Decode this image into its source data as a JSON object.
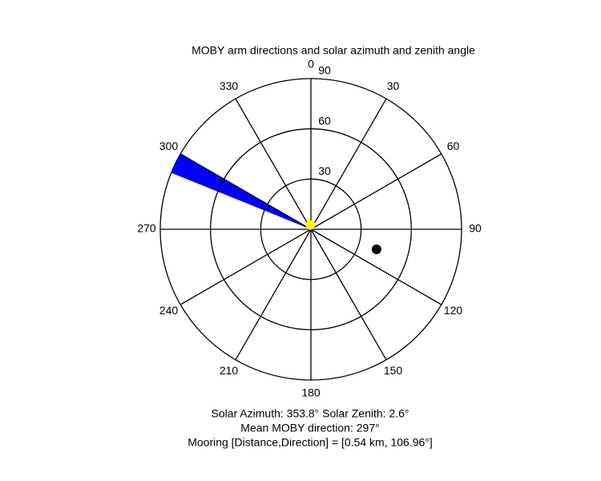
{
  "chart_data": {
    "type": "polar",
    "title": "MOBY arm directions and solar azimuth and zenith angle",
    "angle_ticks": [
      0,
      30,
      60,
      90,
      120,
      150,
      180,
      210,
      240,
      270,
      300,
      330
    ],
    "rlim": [
      0,
      90
    ],
    "rticks": [
      30,
      60,
      90
    ],
    "series": [
      {
        "kind": "wedge",
        "color": "#0000ff",
        "theta": [
          292,
          300
        ],
        "r": 90
      },
      {
        "kind": "point",
        "color": "#000000",
        "theta": 106.96,
        "r": 41
      },
      {
        "kind": "point",
        "color": "#ffff00",
        "theta": 353.8,
        "r": 2.6
      }
    ],
    "annotations": [
      "Solar Azimuth: 353.8°   Solar Zenith: 2.6°",
      "Mean MOBY direction: 297°",
      "Mooring [Distance,Direction] = [0.54 km, 106.96°]"
    ]
  }
}
